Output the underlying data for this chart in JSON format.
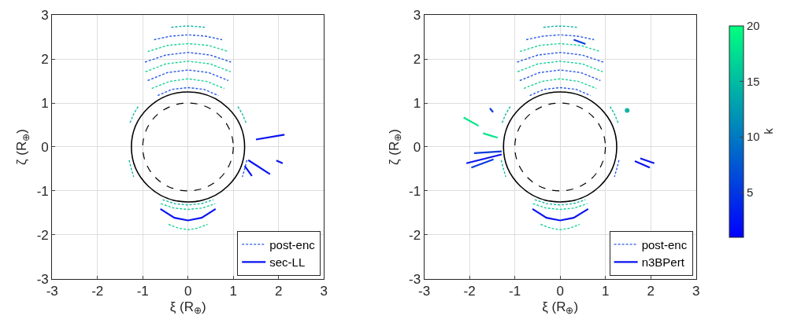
{
  "chart_data": [
    {
      "type": "line",
      "xlabel": "ξ (R$_{⊕}$)",
      "ylabel": "ζ (R$_{⊕}$)",
      "xlim": [
        -3,
        3
      ],
      "ylim": [
        -3,
        3
      ],
      "xticks": [
        -3,
        -2,
        -1,
        0,
        1,
        2,
        3
      ],
      "yticks": [
        -3,
        -2,
        -1,
        0,
        1,
        2,
        3
      ],
      "grid": true,
      "legend": "bottom right",
      "marker": "none",
      "series": [
        {
          "name": "post-enc",
          "color": "#2a5ae6",
          "line_style": "dashed",
          "x": [
            -0.67,
            -0.35,
            0,
            0.35,
            0.67
          ],
          "values": [
            1.17,
            1.31,
            1.35,
            1.31,
            1.17
          ]
        },
        {
          "color": "#19d29b",
          "line_style": "dashed",
          "x": [
            -0.8,
            -0.41,
            0,
            0.41,
            0.8
          ],
          "values": [
            1.33,
            1.49,
            1.55,
            1.49,
            1.33
          ]
        },
        {
          "color": "#2a5ae6",
          "line_style": "dashed",
          "x": [
            -0.89,
            -0.46,
            0,
            0.46,
            0.89
          ],
          "values": [
            1.51,
            1.69,
            1.75,
            1.69,
            1.51
          ]
        },
        {
          "color": "#19d29b",
          "line_style": "dashed",
          "x": [
            -0.94,
            -0.49,
            0,
            0.49,
            0.94
          ],
          "values": [
            1.71,
            1.89,
            1.95,
            1.89,
            1.71
          ]
        },
        {
          "color": "#2a5ae6",
          "line_style": "dashed",
          "x": [
            -0.95,
            -0.49,
            0,
            0.49,
            0.95
          ],
          "values": [
            1.93,
            2.09,
            2.15,
            2.09,
            1.93
          ]
        },
        {
          "color": "#19d29b",
          "line_style": "dashed",
          "x": [
            -0.89,
            -0.45,
            0,
            0.45,
            0.89
          ],
          "values": [
            2.17,
            2.31,
            2.35,
            2.31,
            2.17
          ]
        },
        {
          "color": "#2a5ae6",
          "line_style": "dashed",
          "x": [
            -0.75,
            -0.38,
            0,
            0.38,
            0.75
          ],
          "values": [
            2.44,
            2.52,
            2.55,
            2.52,
            2.44
          ]
        },
        {
          "color": "#14b4a5",
          "line_style": "dashed",
          "x": [
            -0.37,
            -0.18,
            0,
            0.18,
            0.37
          ],
          "values": [
            2.72,
            2.74,
            2.75,
            2.74,
            2.72
          ]
        },
        {
          "color": "#14b4a5",
          "line_style": "dashed",
          "x": [
            -0.56,
            -0.29,
            0,
            0.29,
            0.56
          ],
          "values": [
            -1.2,
            -1.29,
            -1.32,
            -1.29,
            -1.2
          ]
        },
        {
          "color": "#19d29b",
          "line_style": "dashed",
          "x": [
            -0.6,
            -0.31,
            0,
            0.31,
            0.6
          ],
          "values": [
            -1.29,
            -1.39,
            -1.42,
            -1.39,
            -1.29
          ]
        },
        {
          "color": "#19d29b",
          "line_style": "dashed",
          "x": [
            -0.43,
            -0.2,
            0,
            0.2,
            0.43
          ],
          "values": [
            -1.76,
            -1.85,
            -1.88,
            -1.85,
            -1.76
          ]
        },
        {
          "color": "#14b4a5",
          "line_style": "dashed",
          "x": [
            -1.28,
            -1.2,
            -1.1
          ],
          "values": [
            0.55,
            0.75,
            0.92
          ]
        },
        {
          "color": "#14b4a5",
          "line_style": "dashed",
          "x": [
            1.28,
            1.2,
            1.1
          ],
          "values": [
            0.55,
            0.75,
            0.92
          ]
        },
        {
          "color": "#14b4a5",
          "line_style": "dashed",
          "x": [
            -1.3,
            -1.25,
            -1.2
          ],
          "values": [
            -0.3,
            -0.5,
            -0.68
          ]
        },
        {
          "color": "#2a5ae6",
          "line_style": "dashed",
          "x": [
            1.3,
            1.25,
            1.2
          ],
          "values": [
            -0.3,
            -0.5,
            -0.68
          ]
        },
        {
          "name": "sec-LL",
          "color": "#0a14f0",
          "line_style": "solid",
          "x": [
            -0.61,
            -0.3,
            0,
            0.3,
            0.61
          ],
          "values": [
            -1.41,
            -1.61,
            -1.67,
            -1.61,
            -1.41
          ]
        },
        {
          "color": "#0a14f0",
          "line_style": "solid",
          "x": [
            1.5,
            2.13
          ],
          "values": [
            0.17,
            0.28
          ]
        },
        {
          "color": "#0a14f0",
          "line_style": "solid",
          "x": [
            1.33,
            1.81
          ],
          "values": [
            -0.3,
            -0.62
          ]
        },
        {
          "color": "#0a14f0",
          "line_style": "solid",
          "x": [
            1.95,
            2.09
          ],
          "values": [
            -0.31,
            -0.37
          ]
        },
        {
          "color": "#0a14f0",
          "line_style": "solid",
          "x": [
            1.25,
            1.41
          ],
          "values": [
            -0.43,
            -0.66
          ]
        }
      ]
    },
    {
      "type": "line",
      "xlabel": "ξ (R$_{⊕}$)",
      "ylabel": "ζ (R$_{⊕}$)",
      "xlim": [
        -3,
        3
      ],
      "ylim": [
        -3,
        3
      ],
      "xticks": [
        -3,
        -2,
        -1,
        0,
        1,
        2,
        3
      ],
      "yticks": [
        -3,
        -2,
        -1,
        0,
        1,
        2,
        3
      ],
      "grid": true,
      "legend": "bottom right",
      "marker": "none",
      "clabel": "k",
      "clim": [
        1,
        20
      ],
      "cticks": [
        5,
        10,
        15,
        20
      ],
      "series": [
        {
          "name": "post-enc",
          "color": "#2a5ae6",
          "line_style": "dashed",
          "x": [
            -0.67,
            -0.35,
            0,
            0.35,
            0.67
          ],
          "values": [
            1.17,
            1.31,
            1.35,
            1.31,
            1.17
          ]
        },
        {
          "color": "#19d29b",
          "line_style": "dashed",
          "x": [
            -0.8,
            -0.41,
            0,
            0.41,
            0.8
          ],
          "values": [
            1.33,
            1.49,
            1.55,
            1.49,
            1.33
          ]
        },
        {
          "color": "#2a5ae6",
          "line_style": "dashed",
          "x": [
            -0.89,
            -0.46,
            0,
            0.46,
            0.89
          ],
          "values": [
            1.51,
            1.69,
            1.75,
            1.69,
            1.51
          ]
        },
        {
          "color": "#19d29b",
          "line_style": "dashed",
          "x": [
            -0.94,
            -0.49,
            0,
            0.49,
            0.94
          ],
          "values": [
            1.71,
            1.89,
            1.95,
            1.89,
            1.71
          ]
        },
        {
          "color": "#2a5ae6",
          "line_style": "dashed",
          "x": [
            -0.95,
            -0.49,
            0,
            0.49,
            0.95
          ],
          "values": [
            1.93,
            2.09,
            2.15,
            2.09,
            1.93
          ]
        },
        {
          "color": "#19d29b",
          "line_style": "dashed",
          "x": [
            -0.89,
            -0.45,
            0,
            0.45,
            0.89
          ],
          "values": [
            2.17,
            2.31,
            2.35,
            2.31,
            2.17
          ]
        },
        {
          "color": "#2a5ae6",
          "line_style": "dashed",
          "x": [
            -0.75,
            -0.38,
            0,
            0.38,
            0.75
          ],
          "values": [
            2.44,
            2.52,
            2.55,
            2.52,
            2.44
          ]
        },
        {
          "color": "#14b4a5",
          "line_style": "dashed",
          "x": [
            -0.37,
            -0.18,
            0,
            0.18,
            0.37
          ],
          "values": [
            2.72,
            2.74,
            2.75,
            2.74,
            2.72
          ]
        },
        {
          "color": "#14b4a5",
          "line_style": "dashed",
          "x": [
            -0.56,
            -0.29,
            0,
            0.29,
            0.56
          ],
          "values": [
            -1.2,
            -1.29,
            -1.32,
            -1.29,
            -1.2
          ]
        },
        {
          "color": "#19d29b",
          "line_style": "dashed",
          "x": [
            -0.6,
            -0.31,
            0,
            0.31,
            0.6
          ],
          "values": [
            -1.29,
            -1.39,
            -1.42,
            -1.39,
            -1.29
          ]
        },
        {
          "color": "#19d29b",
          "line_style": "dashed",
          "x": [
            -0.43,
            -0.2,
            0,
            0.2,
            0.43
          ],
          "values": [
            -1.76,
            -1.85,
            -1.88,
            -1.85,
            -1.76
          ]
        },
        {
          "color": "#14b4a5",
          "line_style": "dashed",
          "x": [
            -1.28,
            -1.2,
            -1.1
          ],
          "values": [
            0.55,
            0.75,
            0.92
          ]
        },
        {
          "color": "#14b4a5",
          "line_style": "dashed",
          "x": [
            1.28,
            1.2,
            1.1
          ],
          "values": [
            0.55,
            0.75,
            0.92
          ]
        },
        {
          "color": "#14b4a5",
          "line_style": "dashed",
          "x": [
            -1.3,
            -1.25,
            -1.2
          ],
          "values": [
            -0.3,
            -0.5,
            -0.68
          ]
        },
        {
          "color": "#2a5ae6",
          "line_style": "dashed",
          "x": [
            1.3,
            1.25,
            1.2
          ],
          "values": [
            -0.3,
            -0.5,
            -0.68
          ]
        },
        {
          "type": "scatter",
          "marker": "circle",
          "color": "#14b4a5",
          "x": [
            1.48
          ],
          "values": [
            0.83
          ]
        },
        {
          "name": "n3BPert",
          "color": "#0a14f0",
          "line_style": "solid",
          "x": [
            -0.61,
            -0.3,
            0,
            0.3,
            0.62
          ],
          "values": [
            -1.41,
            -1.61,
            -1.67,
            -1.61,
            -1.41
          ]
        },
        {
          "color": "#0a3cdc",
          "line_style": "solid",
          "x": [
            0.3,
            0.56
          ],
          "values": [
            2.44,
            2.34
          ]
        },
        {
          "color": "#0a3cdc",
          "line_style": "solid",
          "x": [
            -1.9,
            -1.29
          ],
          "values": [
            -0.14,
            -0.1
          ]
        },
        {
          "color": "#0a14f0",
          "line_style": "solid",
          "x": [
            -2.07,
            -1.29
          ],
          "values": [
            -0.37,
            -0.17
          ]
        },
        {
          "color": "#0a3cdc",
          "line_style": "solid",
          "x": [
            -1.96,
            -1.47
          ],
          "values": [
            -0.47,
            -0.28
          ]
        },
        {
          "color": "#00e58a",
          "line_style": "solid",
          "x": [
            -2.13,
            -1.8
          ],
          "values": [
            0.67,
            0.48
          ]
        },
        {
          "color": "#00e58a",
          "line_style": "solid",
          "x": [
            -1.7,
            -1.38
          ],
          "values": [
            0.31,
            0.21
          ]
        },
        {
          "color": "#0a3cdc",
          "line_style": "solid",
          "x": [
            -1.55,
            -1.48
          ],
          "values": [
            0.88,
            0.79
          ]
        },
        {
          "color": "#0a14f0",
          "line_style": "solid",
          "x": [
            1.77,
            2.08
          ],
          "values": [
            -0.26,
            -0.37
          ]
        },
        {
          "color": "#0a14f0",
          "line_style": "solid",
          "x": [
            1.65,
            1.98
          ],
          "values": [
            -0.32,
            -0.47
          ]
        }
      ]
    }
  ]
}
